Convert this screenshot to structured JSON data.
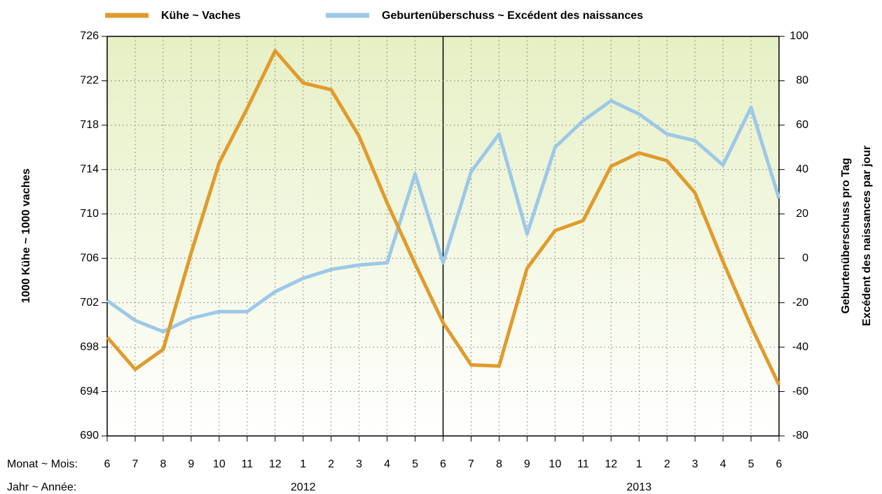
{
  "chart_data": {
    "type": "line",
    "ylabel": "1000 Kühe ~ 1000 vaches",
    "y2label": [
      "Geburtenüberschuss pro Tag",
      "Excédent des naissances par jour"
    ],
    "row_labels": [
      "Monat ~ Mois:",
      "Jahr ~ Année:"
    ],
    "categories": [
      "6",
      "7",
      "8",
      "9",
      "10",
      "11",
      "12",
      "1",
      "2",
      "3",
      "4",
      "5",
      "6",
      "7",
      "8",
      "9",
      "10",
      "11",
      "12",
      "1",
      "2",
      "3",
      "4",
      "5",
      "6"
    ],
    "years": [
      "2012",
      "2013"
    ],
    "series": [
      {
        "name": "Kühe ~ Vaches",
        "color": "#e09b2d",
        "axis": "y",
        "values": [
          698.9,
          696.0,
          697.8,
          706.5,
          714.6,
          719.5,
          724.7,
          721.8,
          721.2,
          717.0,
          711.0,
          705.5,
          700.2,
          696.4,
          696.3,
          705.1,
          708.5,
          709.4,
          714.3,
          715.5,
          714.8,
          711.9,
          705.7,
          699.9,
          694.6
        ]
      },
      {
        "name": "Geburtenüberschuss ~ Excédent des naissances",
        "color": "#9dc8e8",
        "axis": "y2",
        "values": [
          -19,
          -28,
          -33,
          -27,
          -24,
          -24,
          -15,
          -9,
          -5,
          -3,
          -2,
          38,
          -2,
          39,
          56,
          11,
          50,
          62,
          71,
          65,
          56,
          53,
          42,
          68,
          27
        ]
      }
    ],
    "ylim": [
      690,
      726
    ],
    "yticks": [
      690,
      694,
      698,
      702,
      706,
      710,
      714,
      718,
      722,
      726
    ],
    "y2lim": [
      -80,
      100
    ],
    "y2ticks": [
      -80,
      -60,
      -40,
      -20,
      0,
      20,
      40,
      60,
      80,
      100
    ],
    "grid": true
  }
}
